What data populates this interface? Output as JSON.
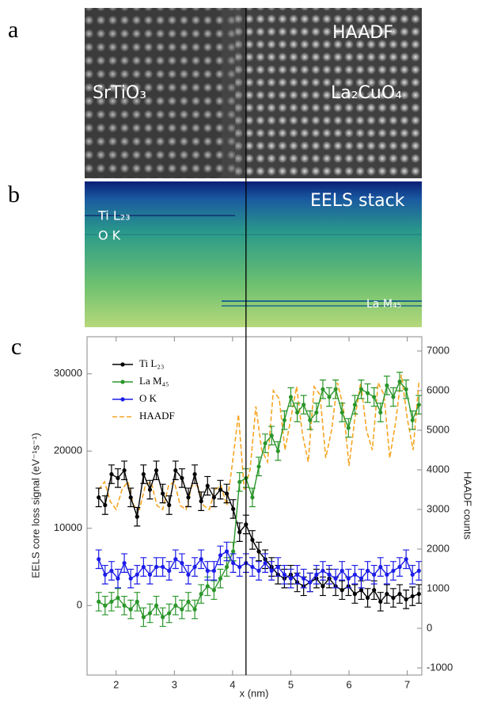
{
  "panels": {
    "labels": [
      "a",
      "b",
      "c"
    ],
    "haadf_image": {
      "label": "HAADF",
      "left": "SrTiO₃",
      "right": "La₂CuO₄"
    },
    "eels_image": {
      "label": "EELS stack",
      "ti": "Ti L₂₃",
      "o": "O K",
      "la": "La M₄₅"
    }
  },
  "chart_data": {
    "type": "line",
    "xlabel": "x (nm)",
    "ylabel": "EELS core loss signal (eV⁻¹s⁻¹)",
    "y2label": "HAADF counts",
    "xlim": [
      1.5,
      7.25
    ],
    "xticks": [
      2,
      3,
      4,
      5,
      6,
      7
    ],
    "ylim": [
      -9000,
      34800
    ],
    "yticks": [
      0,
      10000,
      20000,
      30000
    ],
    "y2lim": [
      -1180,
      7360
    ],
    "y2ticks": [
      -1000,
      0,
      1000,
      2000,
      3000,
      4000,
      5000,
      6000,
      7000
    ],
    "vline": 4.23,
    "legend": "upper left",
    "x": [
      1.7,
      1.81,
      1.92,
      2.03,
      2.14,
      2.25,
      2.36,
      2.47,
      2.58,
      2.69,
      2.8,
      2.91,
      3.02,
      3.13,
      3.24,
      3.35,
      3.46,
      3.57,
      3.68,
      3.79,
      3.9,
      4.01,
      4.12,
      4.23,
      4.34,
      4.45,
      4.56,
      4.67,
      4.78,
      4.89,
      5.0,
      5.11,
      5.22,
      5.33,
      5.44,
      5.55,
      5.66,
      5.77,
      5.88,
      5.99,
      6.1,
      6.21,
      6.32,
      6.43,
      6.54,
      6.65,
      6.76,
      6.87,
      6.98,
      7.09,
      7.2
    ],
    "series": [
      {
        "name": "Ti L₂₃",
        "color": "#000000",
        "error": 1200,
        "values": [
          14000,
          13000,
          17000,
          16500,
          17500,
          14000,
          11500,
          17000,
          15000,
          17500,
          14500,
          13000,
          17500,
          16500,
          14000,
          17000,
          13500,
          15500,
          14000,
          15000,
          14500,
          12500,
          9500,
          10500,
          8500,
          7000,
          6000,
          5000,
          4000,
          3500,
          4000,
          3000,
          2500,
          3000,
          3500,
          2500,
          3500,
          2500,
          2000,
          2500,
          1500,
          2000,
          1000,
          2000,
          500,
          1500,
          1000,
          1500,
          800,
          1200,
          1500
        ]
      },
      {
        "name": "La M₄₅",
        "color": "#2a962a",
        "error": 1200,
        "values": [
          500,
          0,
          500,
          1000,
          0,
          -500,
          500,
          -1500,
          -1000,
          0,
          -1500,
          -1000,
          0,
          -500,
          500,
          -500,
          1500,
          2500,
          2000,
          3500,
          5000,
          7000,
          16000,
          16500,
          14000,
          18000,
          21000,
          22000,
          20000,
          24000,
          27000,
          25000,
          26000,
          24000,
          25000,
          28000,
          27000,
          28000,
          25000,
          23000,
          26000,
          28000,
          27500,
          27000,
          25000,
          28500,
          27000,
          29000,
          28000,
          24000,
          26000
        ]
      },
      {
        "name": "O K",
        "color": "#1c1ce8",
        "error": 1200,
        "values": [
          6000,
          4000,
          4500,
          3500,
          5500,
          3500,
          4000,
          5000,
          4000,
          5000,
          5000,
          4500,
          6000,
          5500,
          4000,
          5000,
          6000,
          4500,
          4500,
          6500,
          7000,
          5500,
          5000,
          5500,
          5000,
          4500,
          5500,
          4500,
          5000,
          4000,
          3500,
          4000,
          3500,
          3000,
          4000,
          4500,
          4000,
          3500,
          4500,
          3500,
          4000,
          3500,
          4500,
          4000,
          5000,
          4000,
          4500,
          5000,
          6000,
          4000,
          4500
        ]
      },
      {
        "name": "HAADF",
        "color": "#f5a623",
        "dashed": true,
        "axis": "y2",
        "x": [
          1.7,
          1.8,
          1.9,
          2.0,
          2.1,
          2.2,
          2.3,
          2.4,
          2.5,
          2.6,
          2.7,
          2.8,
          2.9,
          3.0,
          3.1,
          3.2,
          3.3,
          3.4,
          3.5,
          3.6,
          3.7,
          3.8,
          3.9,
          4.0,
          4.1,
          4.2,
          4.3,
          4.4,
          4.5,
          4.6,
          4.7,
          4.8,
          4.9,
          5.0,
          5.1,
          5.2,
          5.3,
          5.4,
          5.5,
          5.6,
          5.7,
          5.8,
          5.9,
          6.0,
          6.1,
          6.2,
          6.3,
          6.4,
          6.5,
          6.6,
          6.7,
          6.8,
          6.9,
          7.0,
          7.1,
          7.2
        ],
        "values": [
          3500,
          3700,
          3200,
          3000,
          3500,
          3700,
          3100,
          3000,
          3600,
          3700,
          3100,
          3000,
          3600,
          3700,
          3100,
          3000,
          3600,
          3600,
          3100,
          3000,
          3500,
          3600,
          3100,
          4200,
          5400,
          3500,
          4000,
          5600,
          4500,
          4200,
          6000,
          5800,
          4500,
          5300,
          6100,
          4900,
          4200,
          6100,
          5900,
          4300,
          5000,
          6200,
          5600,
          4100,
          5300,
          6200,
          5000,
          4500,
          6200,
          5900,
          4300,
          5200,
          6400,
          5300,
          4500,
          6200
        ]
      }
    ]
  }
}
